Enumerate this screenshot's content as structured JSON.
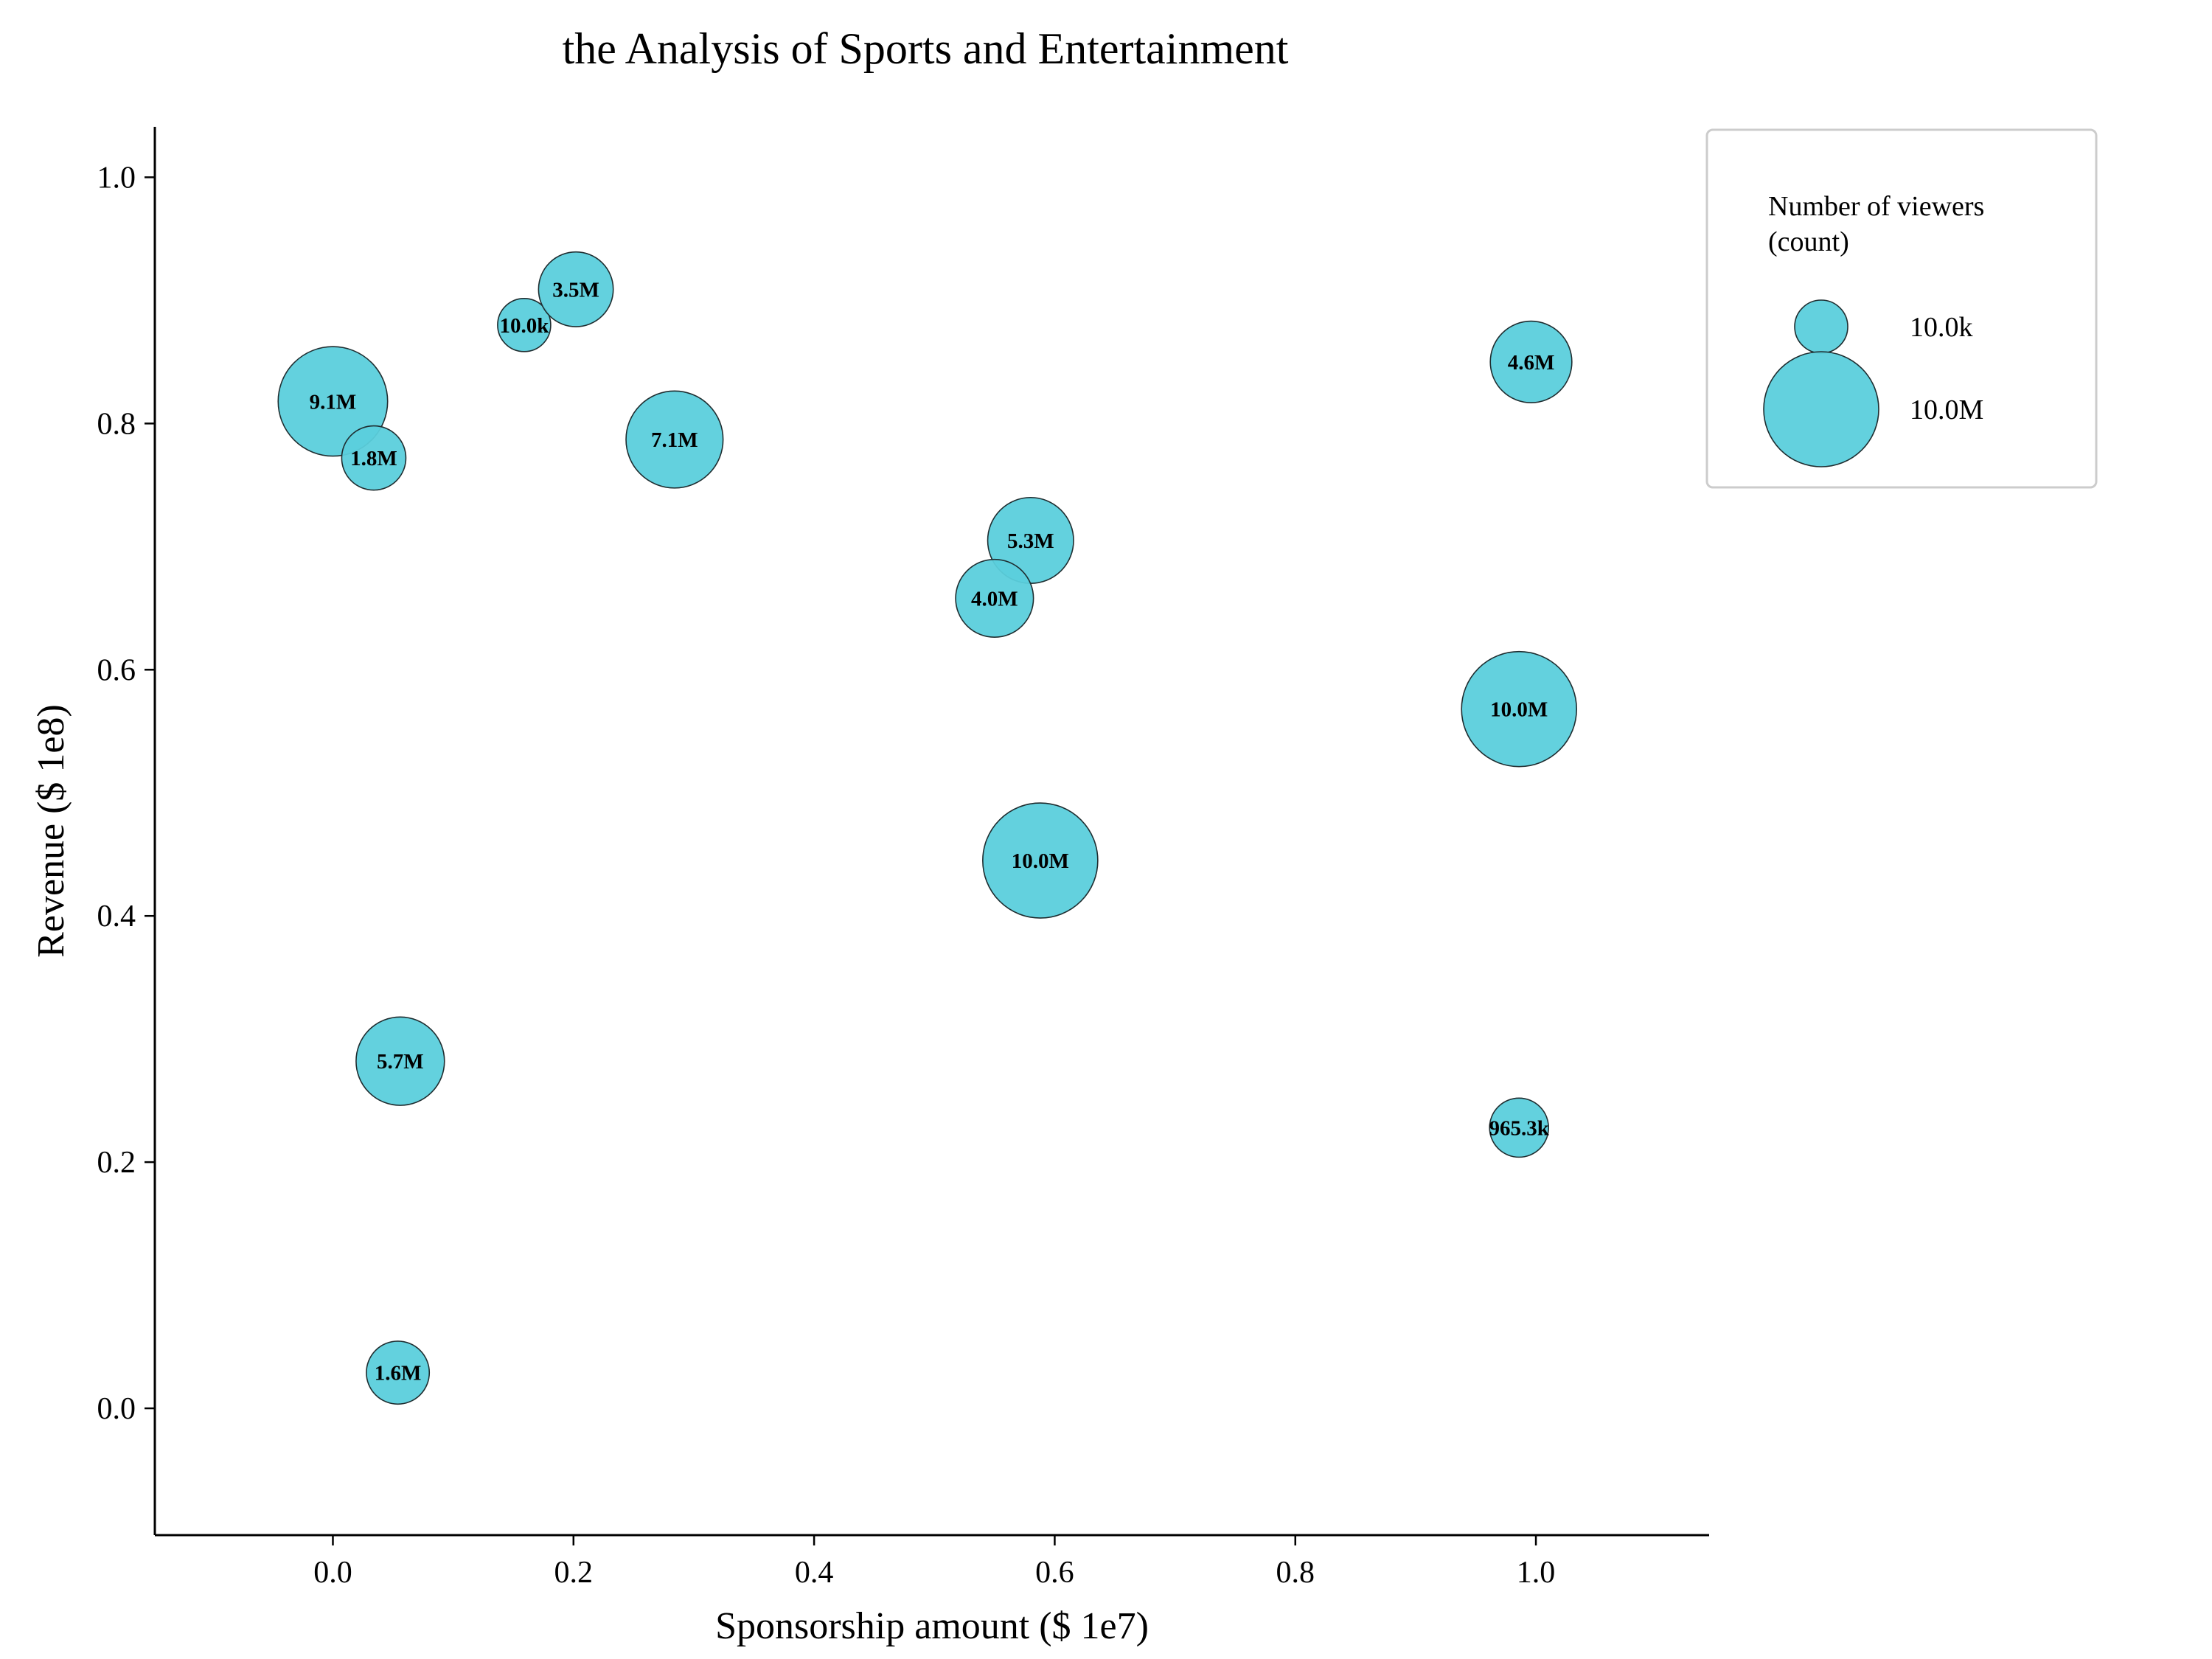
{
  "chart_data": {
    "type": "scatter",
    "title": "the Analysis of Sports and Entertainment",
    "xlabel": "Sponsorship amount ($ 1e7)",
    "ylabel": "Revenue ($ 1e8)",
    "xlim": [
      -0.148,
      1.144
    ],
    "ylim": [
      -0.103,
      1.041
    ],
    "xticks": [
      "0.0",
      "0.2",
      "0.4",
      "0.6",
      "0.8",
      "1.0"
    ],
    "yticks": [
      "0.0",
      "0.2",
      "0.4",
      "0.6",
      "0.8",
      "1.0"
    ],
    "grid": false,
    "bubble_color": "#5bcfdc",
    "edge_color": "#1f2d30",
    "size_variable": "Number of viewers (count)",
    "points": [
      {
        "x": 0.0,
        "y": 0.818,
        "size": 9100000,
        "label": "9.1M"
      },
      {
        "x": 0.034,
        "y": 0.772,
        "size": 1800000,
        "label": "1.8M"
      },
      {
        "x": 0.159,
        "y": 0.88,
        "size": 10000,
        "label": "10.0k"
      },
      {
        "x": 0.202,
        "y": 0.909,
        "size": 3500000,
        "label": "3.5M"
      },
      {
        "x": 0.284,
        "y": 0.787,
        "size": 7100000,
        "label": "7.1M"
      },
      {
        "x": 0.58,
        "y": 0.705,
        "size": 5300000,
        "label": "5.3M"
      },
      {
        "x": 0.55,
        "y": 0.658,
        "size": 4000000,
        "label": "4.0M"
      },
      {
        "x": 0.588,
        "y": 0.445,
        "size": 10000000,
        "label": "10.0M"
      },
      {
        "x": 0.986,
        "y": 0.568,
        "size": 10000000,
        "label": "10.0M"
      },
      {
        "x": 0.996,
        "y": 0.85,
        "size": 4600000,
        "label": "4.6M"
      },
      {
        "x": 0.056,
        "y": 0.282,
        "size": 5700000,
        "label": "5.7M"
      },
      {
        "x": 0.986,
        "y": 0.228,
        "size": 965300,
        "label": "965.3k"
      },
      {
        "x": 0.054,
        "y": 0.029,
        "size": 1600000,
        "label": "1.6M"
      }
    ],
    "legend": {
      "placement": "upper-right-outside",
      "title": [
        "Number of viewers",
        "(count)"
      ],
      "entries": [
        {
          "size": 10000,
          "label": "10.0k"
        },
        {
          "size": 10000000,
          "label": "10.0M"
        }
      ]
    }
  }
}
